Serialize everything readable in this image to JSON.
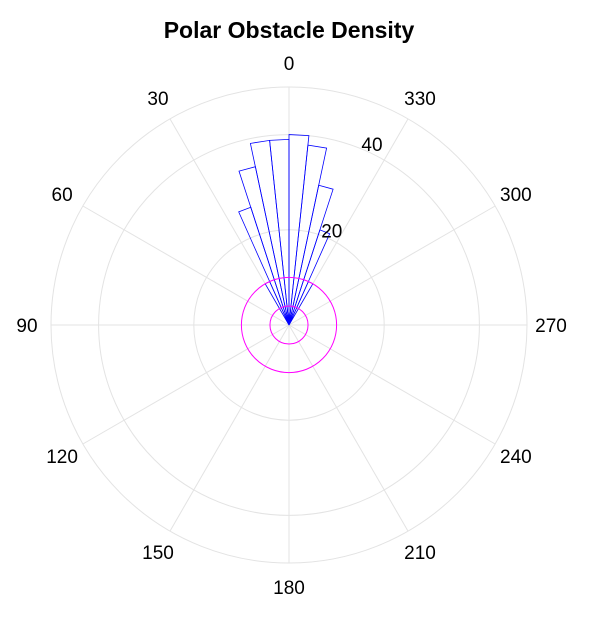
{
  "chart_data": {
    "type": "polar-bar",
    "title": "Polar Obstacle Density",
    "theta_direction": "counterclockwise",
    "theta_zero": "top",
    "theta_ticks": [
      0,
      30,
      60,
      90,
      120,
      150,
      180,
      210,
      240,
      270,
      300,
      330
    ],
    "theta_tick_labels": [
      "0",
      "30",
      "60",
      "90",
      "120",
      "150",
      "180",
      "210",
      "240",
      "270",
      "300",
      "330"
    ],
    "r_ticks": [
      20,
      40
    ],
    "r_tick_labels": [
      "20",
      "40"
    ],
    "rlim": [
      0,
      50
    ],
    "grid": true,
    "bin_width_deg": 6,
    "bars": {
      "color": "#0000ff",
      "theta_start_deg": [
        -30,
        -24,
        -18,
        -12,
        -6,
        0,
        6,
        12,
        18,
        24
      ],
      "values": [
        10,
        21,
        30,
        38,
        40,
        39,
        39,
        34,
        26,
        10
      ]
    },
    "circles": {
      "color": "#ff00ff",
      "radii": [
        4,
        10
      ]
    }
  }
}
